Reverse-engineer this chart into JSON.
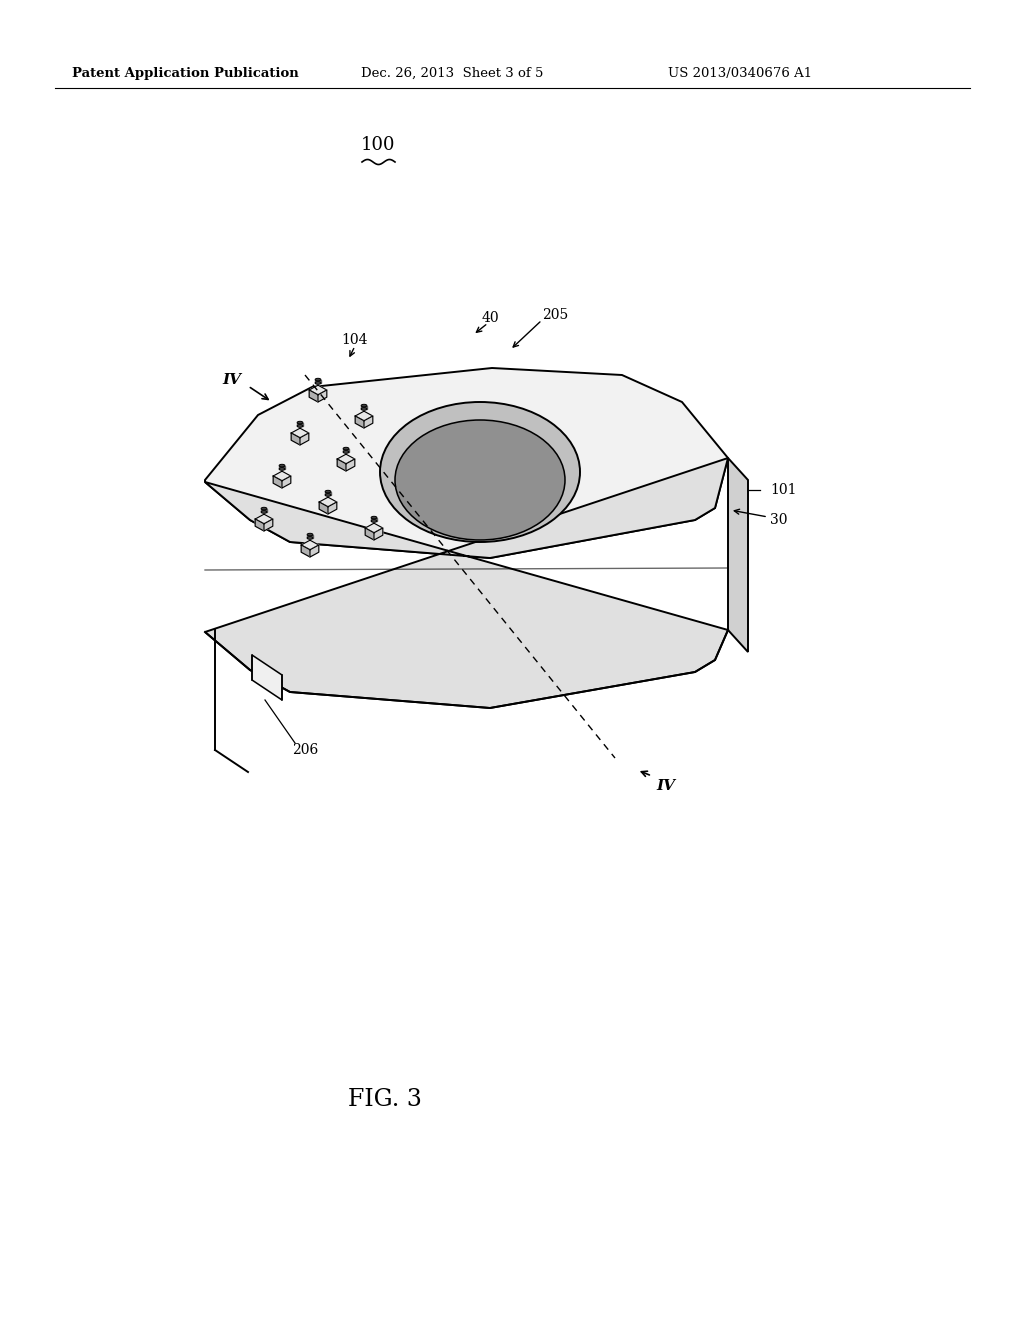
{
  "header_left": "Patent Application Publication",
  "header_mid": "Dec. 26, 2013  Sheet 3 of 5",
  "header_right": "US 2013/0340676 A1",
  "fig_label": "FIG. 3",
  "label_100": "100",
  "label_40": "40",
  "label_104": "104",
  "label_205": "205",
  "label_101": "101",
  "label_30": "30",
  "label_206": "206",
  "label_IV_top": "IV",
  "label_IV_bot": "IV",
  "bg_color": "#ffffff",
  "line_color": "#000000",
  "face_top_color": "#f2f2f2",
  "face_front_color": "#e0e0e0",
  "face_right_color": "#d0d0d0",
  "hole_color": "#c0c0c0",
  "hole_inner_color": "#909090",
  "pin_top_color": "#e8e8e8",
  "pin_left_color": "#b0b0b0",
  "pin_right_color": "#d0d0d0",
  "pin_stub_color": "#404040"
}
